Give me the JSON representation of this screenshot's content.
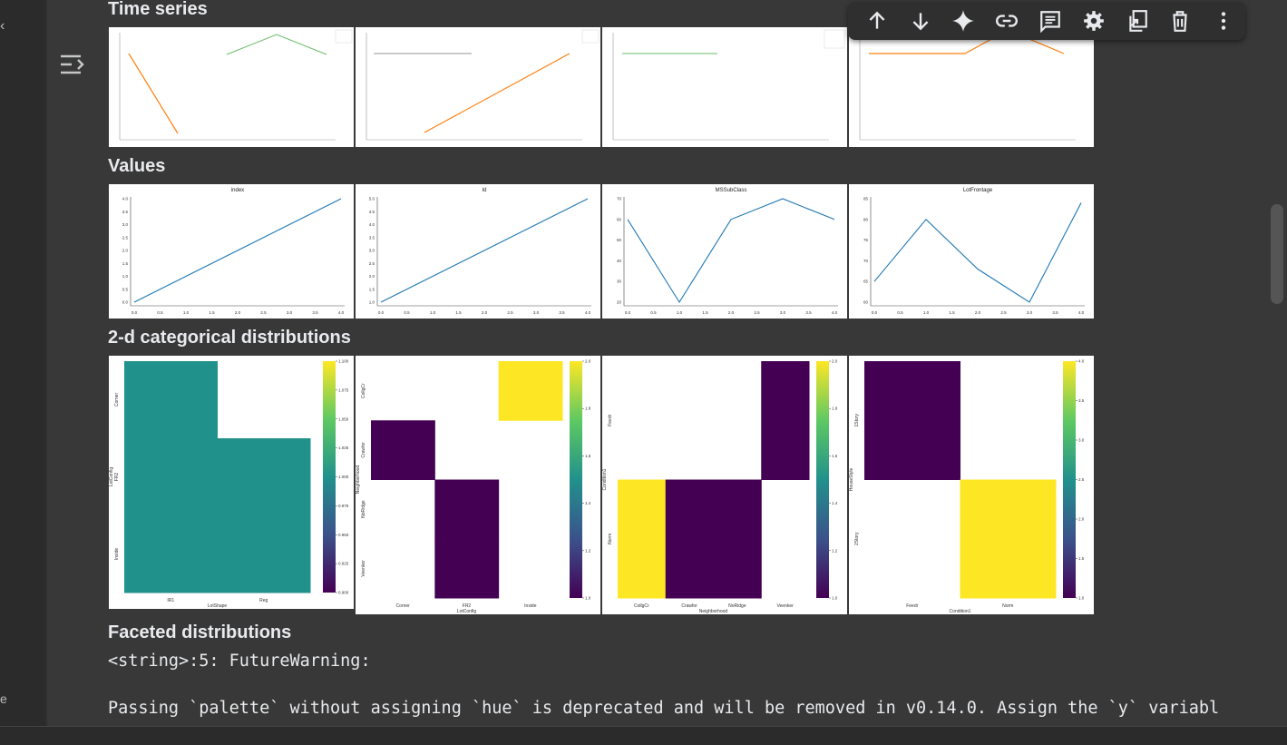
{
  "sections": {
    "time_series": "Time series",
    "values": "Values",
    "cat2d": "2-d categorical distributions",
    "faceted": "Faceted distributions"
  },
  "output": {
    "line1": "<string>:5: FutureWarning:",
    "line2": "Passing `palette` without assigning `hue` is deprecated and will be removed in v0.14.0. Assign the `y` variabl"
  },
  "toolbar": {
    "buttons": [
      "move-up-icon",
      "move-down-icon",
      "gemini-spark-icon",
      "link-icon",
      "comment-icon",
      "settings-gear-icon",
      "mirror-cell-icon",
      "delete-icon",
      "more-vert-icon"
    ]
  },
  "chart_data": [
    {
      "type": "line",
      "group": "Values",
      "title": "index",
      "x": [
        0,
        1,
        2,
        3,
        4
      ],
      "values": [
        0,
        1,
        2,
        3,
        4
      ],
      "xlim": [
        0,
        4
      ],
      "ylim": [
        0,
        4
      ],
      "xticks": [
        "0.0",
        "0.5",
        "1.0",
        "1.5",
        "2.0",
        "2.5",
        "3.0",
        "3.5",
        "4.0"
      ],
      "yticks": [
        "0.0",
        "0.5",
        "1.0",
        "1.5",
        "2.0",
        "2.5",
        "3.0",
        "3.5",
        "4.0"
      ]
    },
    {
      "type": "line",
      "group": "Values",
      "title": "Id",
      "x": [
        0,
        1,
        2,
        3,
        4
      ],
      "values": [
        1,
        2,
        3,
        4,
        5
      ],
      "xlim": [
        0,
        4
      ],
      "ylim": [
        1,
        5
      ],
      "xticks": [
        "0.0",
        "0.5",
        "1.0",
        "1.5",
        "2.0",
        "2.5",
        "3.0",
        "3.5",
        "4.0"
      ],
      "yticks": [
        "1.0",
        "1.5",
        "2.0",
        "2.5",
        "3.0",
        "3.5",
        "4.0",
        "4.5",
        "5.0"
      ]
    },
    {
      "type": "line",
      "group": "Values",
      "title": "MSSubClass",
      "x": [
        0,
        1,
        2,
        3,
        4
      ],
      "values": [
        60,
        20,
        60,
        70,
        60
      ],
      "xlim": [
        0,
        4
      ],
      "ylim": [
        20,
        70
      ],
      "xticks": [
        "0.0",
        "0.5",
        "1.0",
        "1.5",
        "2.0",
        "2.5",
        "3.0",
        "3.5",
        "4.0"
      ],
      "yticks": [
        "20",
        "30",
        "40",
        "50",
        "60",
        "70"
      ]
    },
    {
      "type": "line",
      "group": "Values",
      "title": "LotFrontage",
      "x": [
        0,
        1,
        2,
        3,
        4
      ],
      "values": [
        65,
        80,
        68,
        60,
        84
      ],
      "xlim": [
        0,
        4
      ],
      "ylim": [
        60,
        85
      ],
      "xticks": [
        "0.0",
        "0.5",
        "1.0",
        "1.5",
        "2.0",
        "2.5",
        "3.0",
        "3.5",
        "4.0"
      ],
      "yticks": [
        "60",
        "65",
        "70",
        "75",
        "80",
        "85"
      ]
    },
    {
      "type": "heatmap",
      "group": "2-d categorical distributions",
      "xlabel": "LotShape",
      "ylabel": "LotConfig",
      "x_categories": [
        "IR1",
        "Reg"
      ],
      "y_categories": [
        "Corner",
        "FR2",
        "Inside"
      ],
      "values": [
        [
          1,
          null
        ],
        [
          1,
          1
        ],
        [
          1,
          1
        ]
      ],
      "vmin": 0.9,
      "vmax": 1.1,
      "colorbar_ticks": [
        "0.900",
        "0.925",
        "0.950",
        "0.975",
        "1.000",
        "1.025",
        "1.050",
        "1.075",
        "1.100"
      ]
    },
    {
      "type": "heatmap",
      "group": "2-d categorical distributions",
      "xlabel": "LotConfig",
      "ylabel": "Neighborhood",
      "x_categories": [
        "Corner",
        "FR2",
        "Inside"
      ],
      "y_categories": [
        "CollgCr",
        "Crawfor",
        "NoRidge",
        "Veenker"
      ],
      "values": [
        [
          null,
          null,
          2
        ],
        [
          1,
          null,
          null
        ],
        [
          null,
          1,
          null
        ],
        [
          null,
          1,
          null
        ]
      ],
      "vmin": 1,
      "vmax": 2,
      "colorbar_ticks": [
        "1.0",
        "1.2",
        "1.4",
        "1.6",
        "1.8",
        "2.0"
      ]
    },
    {
      "type": "heatmap",
      "group": "2-d categorical distributions",
      "xlabel": "Neighborhood",
      "ylabel": "Condition1",
      "x_categories": [
        "CollgCr",
        "Crawfor",
        "NoRidge",
        "Veenker"
      ],
      "y_categories": [
        "Feedr",
        "Norm"
      ],
      "values": [
        [
          null,
          null,
          null,
          1
        ],
        [
          2,
          1,
          1,
          null
        ]
      ],
      "vmin": 1,
      "vmax": 2,
      "colorbar_ticks": [
        "1.0",
        "1.2",
        "1.4",
        "1.6",
        "1.8",
        "2.0"
      ]
    },
    {
      "type": "heatmap",
      "group": "2-d categorical distributions",
      "xlabel": "Condition1",
      "ylabel": "HouseStyle",
      "x_categories": [
        "Feedr",
        "Norm"
      ],
      "y_categories": [
        "1Story",
        "2Story"
      ],
      "values": [
        [
          1,
          null
        ],
        [
          null,
          4
        ]
      ],
      "vmin": 1,
      "vmax": 4,
      "colorbar_ticks": [
        "1.0",
        "1.5",
        "2.0",
        "2.5",
        "3.0",
        "3.5",
        "4.0"
      ]
    }
  ],
  "colors": {
    "series": "#1f77b4",
    "orange": "#ff7f0e",
    "teal": "#2ca02c",
    "viridis_low": "#440154",
    "viridis_mid": "#21918c",
    "viridis_high": "#fde725"
  }
}
